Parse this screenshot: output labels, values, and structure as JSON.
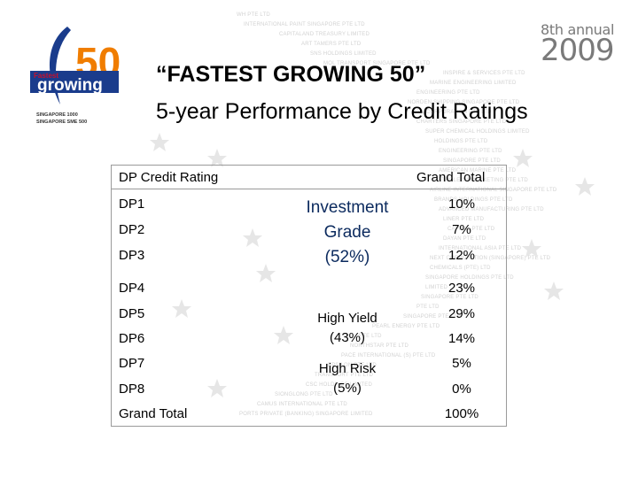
{
  "background_names": [
    "WH PTE LTD",
    "INTERNATIONAL PAINT SINGAPORE PTE LTD",
    "CAPITALAND TREASURY LIMITED",
    "ART TAMERS PTE LTD",
    "SNS HOLDINGS LIMITED",
    "MOL TRANSPORT SINGAPORE PTE LTD",
    "INSPIRE & SERVICES PTE LTD",
    "MARINE ENGINEERING LIMITED",
    "ENGINEERING PTE LTD",
    "NORDEN SHIPPING SINGAPORE PTE LTD",
    "RAIL CORPORATION PTE LTD",
    "CHARTERS SINGAPORE PTE LTD",
    "SUPER CHEMICAL HOLDINGS LIMITED",
    "HOLDINGS PTE LTD",
    "ENGINEERING PTE LTD",
    "SINGAPORE PTE LTD",
    "AMERICAN MARINE PTE LTD",
    "PETROLEUM MARKETING PTE LTD",
    "AIRLINE INTERNATIONAL SINGAPORE PTE LTD",
    "BRANDS HOLDINGS PTE LTD",
    "ADVANCED MANUFACTURING PTE LTD",
    "LINER PTE LTD",
    "CAPITAL PTE LTD",
    "DAYAN PTE LTD",
    "INTERNATIONAL ASIA PTE LTD",
    "NEXT CORPORATION (SINGAPORE) PTE LTD",
    "CHEMICALS (PTE) LTD",
    "SINGAPORE HOLDINGS PTE LTD",
    "LIMITED",
    "SINGAPORE PTE LTD",
    "PTE LTD",
    "SINGAPORE PTE LTD",
    "PEARL ENERGY PTE LTD",
    "PTE LTD",
    "NORTHSTAR PTE LTD",
    "PACE INTERNATIONAL (S) PTE LTD",
    "EPSILON PTE LTD",
    "TRANSPORT PTE LTD",
    "CSC HOLDINGS LIMITED",
    "SIONGLONG PTE LTD",
    "CAMUS INTERNATIONAL PTE LTD",
    "PORTS PRIVATE (BANKING) SINGAPORE LIMITED"
  ],
  "logo": {
    "word1": "Fastest",
    "word2": "growing",
    "number": "50",
    "caption1": "SINGAPORE 1000",
    "caption2": "SINGAPORE SME 500"
  },
  "badge": {
    "line1": "8th annual",
    "line2": "2009"
  },
  "title": {
    "line1": "“FASTEST GROWING 50”",
    "line2": "5-year Performance by Credit Ratings"
  },
  "table": {
    "col1_header": "DP Credit Rating",
    "col3_header": "Grand Total",
    "rows": [
      {
        "label": "DP1",
        "value": "10%"
      },
      {
        "label": "DP2",
        "value": "7%"
      },
      {
        "label": "DP3",
        "value": "12%"
      },
      {
        "label": "DP4",
        "value": "23%"
      },
      {
        "label": "DP5",
        "value": "29%"
      },
      {
        "label": "DP6",
        "value": "14%"
      },
      {
        "label": "DP7",
        "value": "5%"
      },
      {
        "label": "DP8",
        "value": "0%"
      },
      {
        "label": "Grand Total",
        "value": "100%"
      }
    ],
    "groups": {
      "investment": {
        "line1": "Investment",
        "line2": "Grade",
        "line3": "(52%)"
      },
      "high_yield": {
        "line1": "High Yield",
        "line2": "(43%)"
      },
      "high_risk": {
        "line1": "High Risk",
        "line2": "(5%)"
      }
    }
  },
  "colors": {
    "logo_blue": "#1a3c8c",
    "logo_orange": "#f07d00",
    "logo_red": "#c8102e",
    "group_text": "#0b2a5e",
    "border": "#9a9a9a"
  }
}
